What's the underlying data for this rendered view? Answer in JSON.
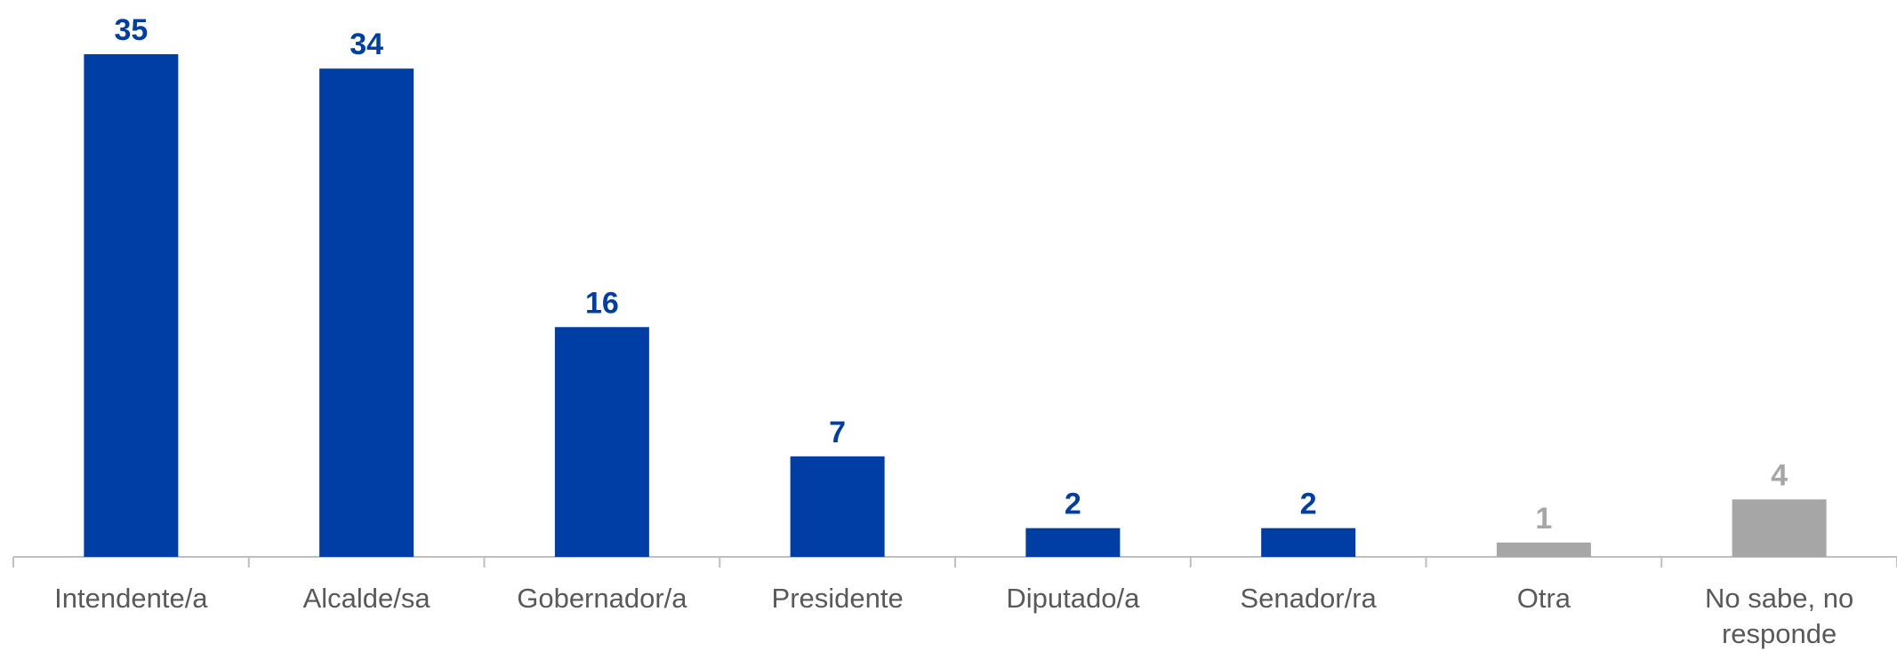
{
  "chart_data": {
    "type": "bar",
    "categories": [
      "Intendente/a",
      "Alcalde/sa",
      "Gobernador/a",
      "Presidente",
      "Diputado/a",
      "Senador/ra",
      "Otra",
      "No sabe, no responde"
    ],
    "values": [
      35,
      34,
      16,
      7,
      2,
      2,
      1,
      4
    ],
    "colors": [
      "#003DA5",
      "#003DA5",
      "#003DA5",
      "#003DA5",
      "#003DA5",
      "#003DA5",
      "#A6A6A6",
      "#A6A6A6"
    ]
  }
}
